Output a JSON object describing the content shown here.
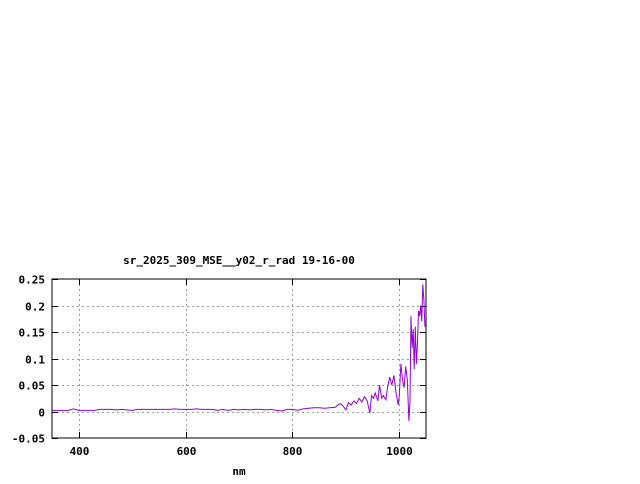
{
  "chart_data": {
    "type": "line",
    "title": "sr_2025_309_MSE__y02_r_rad 19-16-00",
    "xlabel": "nm",
    "ylabel": "",
    "xlim": [
      350,
      1050
    ],
    "ylim": [
      -0.05,
      0.25
    ],
    "xticks": [
      400,
      600,
      800,
      1000
    ],
    "xtick_labels": [
      "400",
      "600",
      "800",
      "1000"
    ],
    "yticks": [
      -0.05,
      0,
      0.05,
      0.1,
      0.15,
      0.2,
      0.25
    ],
    "ytick_labels": [
      "-0.05",
      "0",
      "0.05",
      "0.1",
      "0.15",
      "0.2",
      "0.25"
    ],
    "grid": true,
    "series_color": "#9400d3",
    "series": [
      {
        "x": [
          350,
          360,
          370,
          380,
          390,
          400,
          410,
          420,
          430,
          440,
          450,
          460,
          470,
          480,
          490,
          500,
          510,
          520,
          530,
          540,
          550,
          560,
          570,
          580,
          590,
          600,
          610,
          620,
          630,
          640,
          650,
          660,
          670,
          680,
          690,
          700,
          710,
          720,
          730,
          740,
          750,
          760,
          770,
          780,
          790,
          800,
          810,
          820,
          830,
          840,
          850,
          860,
          870,
          880,
          885,
          890,
          895,
          900,
          905,
          910,
          915,
          920,
          925,
          930,
          935,
          940,
          945,
          948,
          952,
          955,
          960,
          963,
          967,
          970,
          975,
          978,
          982,
          986,
          990,
          994,
          998,
          1000,
          1003,
          1006,
          1009,
          1012,
          1015,
          1018,
          1020,
          1022,
          1024,
          1026,
          1028,
          1030,
          1032,
          1034,
          1036,
          1038,
          1040,
          1042,
          1044,
          1046,
          1048
        ],
        "y": [
          0.002,
          0.002,
          0.002,
          0.002,
          0.005,
          0.002,
          0.002,
          0.002,
          0.002,
          0.004,
          0.004,
          0.004,
          0.003,
          0.004,
          0.003,
          0.002,
          0.004,
          0.004,
          0.004,
          0.004,
          0.004,
          0.004,
          0.004,
          0.005,
          0.004,
          0.004,
          0.004,
          0.005,
          0.004,
          0.004,
          0.004,
          0.002,
          0.004,
          0.002,
          0.004,
          0.003,
          0.004,
          0.003,
          0.004,
          0.004,
          0.003,
          0.004,
          0.002,
          0.001,
          0.004,
          0.004,
          0.002,
          0.005,
          0.006,
          0.007,
          0.007,
          0.006,
          0.007,
          0.008,
          0.012,
          0.015,
          0.01,
          0.003,
          0.017,
          0.012,
          0.02,
          0.015,
          0.025,
          0.018,
          0.028,
          0.02,
          -0.003,
          0.03,
          0.025,
          0.035,
          0.02,
          0.05,
          0.025,
          0.03,
          0.022,
          0.045,
          0.065,
          0.05,
          0.068,
          0.035,
          0.012,
          0.03,
          0.09,
          0.06,
          0.045,
          0.085,
          0.06,
          -0.018,
          0.02,
          0.18,
          0.12,
          0.155,
          0.08,
          0.16,
          0.09,
          0.13,
          0.19,
          0.18,
          0.2,
          0.17,
          0.24,
          0.21,
          0.16
        ]
      }
    ]
  }
}
